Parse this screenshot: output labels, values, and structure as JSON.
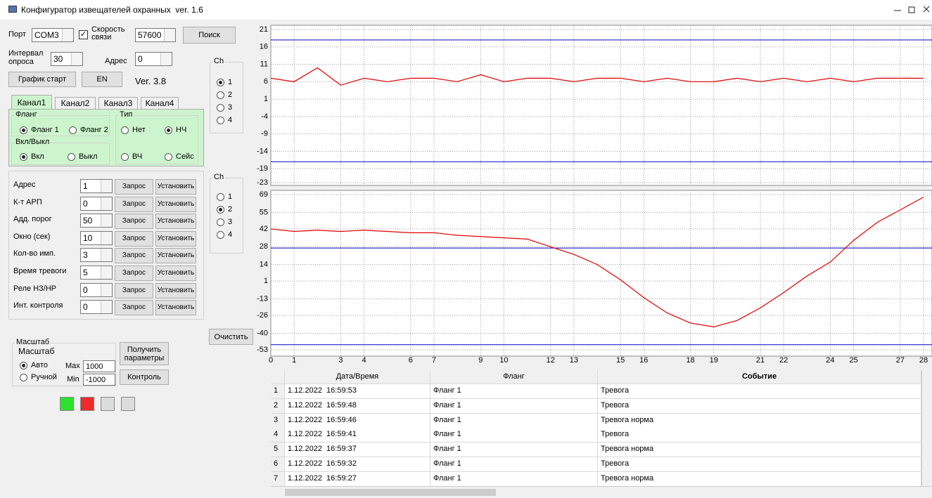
{
  "window": {
    "title": "Конфигуратор извещателей охранных  ver. 1.6"
  },
  "connection": {
    "port_label": "Порт",
    "port": "COM3",
    "speed_checked": true,
    "speed_label": "Скорость связи",
    "speed": 57600,
    "search_button": "Поиск",
    "interval_label": "Интервал опроса",
    "interval": 30,
    "address_label": "Адрес",
    "address": 0,
    "start_button": "График старт",
    "lang_button": "EN",
    "version": "Ver. 3.8"
  },
  "ch_group_1": {
    "title": "Ch",
    "options": [
      1,
      2,
      3,
      4
    ],
    "selected": 0
  },
  "ch_group_2": {
    "title": "Ch",
    "options": [
      1,
      2,
      3,
      4
    ],
    "selected": 1
  },
  "tabs": {
    "items": [
      "Канал1",
      "Канал2",
      "Канал3",
      "Канал4"
    ],
    "active": 0
  },
  "flank": {
    "title": "Фланг",
    "options": [
      "Фланг 1",
      "Фланг 2"
    ],
    "selected": 0
  },
  "onoff": {
    "title": "Вкл/Выкл",
    "options": [
      "Вкл",
      "Выкл"
    ],
    "selected": 0
  },
  "kind": {
    "title": "Тип",
    "options": [
      "Нет",
      "НЧ",
      "ВЧ",
      "Сейс"
    ],
    "selected": 1
  },
  "params": {
    "query_button": "Запрос",
    "set_button": "Установить",
    "rows": [
      {
        "label": "Адрес",
        "value": 1
      },
      {
        "label": "К-т АРП",
        "value": 0
      },
      {
        "label": "Адд. порог",
        "value": 50
      },
      {
        "label": "Окно (сек)",
        "value": 10
      },
      {
        "label": "Кол-во имп.",
        "value": 3
      },
      {
        "label": "Время тревоги",
        "value": 5
      },
      {
        "label": "Реле НЗ/НР",
        "value": 0
      },
      {
        "label": "Инт. контроля",
        "value": 0
      }
    ]
  },
  "clear_button": "Очистить",
  "scale": {
    "title": "Масштаб",
    "options": [
      "Авто",
      "Ручной"
    ],
    "selected": 0,
    "max_label": "Max",
    "max": 1000,
    "min_label": "Min",
    "min": -1000,
    "get_button": "Получить параметры",
    "control_button": "Контроль"
  },
  "indicators": [
    "#2ee02e",
    "#ee2a2a",
    "#dcdcdc",
    "#dcdcdc"
  ],
  "chart_data": [
    {
      "type": "line",
      "x": [
        0,
        1,
        2,
        3,
        4,
        5,
        6,
        7,
        8,
        9,
        10,
        11,
        12,
        13,
        14,
        15,
        16,
        17,
        18,
        19,
        20,
        21,
        22,
        23,
        24,
        25,
        26,
        27,
        28
      ],
      "series": [
        {
          "color": "#e00000",
          "values": [
            7,
            6,
            10,
            5,
            7,
            6,
            7,
            7,
            6,
            8,
            6,
            7,
            7,
            6,
            7,
            7,
            6,
            7,
            6,
            6,
            7,
            6,
            7,
            6,
            7,
            6,
            7,
            7,
            7
          ]
        }
      ],
      "hlines": {
        "color": "#0000c8",
        "values": [
          18,
          -17
        ]
      },
      "xlim": [
        0,
        28
      ],
      "xticks": [
        0,
        1,
        3,
        4,
        6,
        7,
        9,
        10,
        12,
        13,
        15,
        16,
        18,
        19,
        21,
        22,
        24,
        25,
        27,
        28
      ],
      "ylim": [
        -23,
        21
      ],
      "yticks": [
        21,
        16,
        11,
        6,
        1,
        -4,
        -9,
        -14,
        -19,
        -23
      ],
      "grid": true
    },
    {
      "type": "line",
      "x": [
        0,
        1,
        2,
        3,
        4,
        5,
        6,
        7,
        8,
        9,
        10,
        11,
        12,
        13,
        14,
        15,
        16,
        17,
        18,
        19,
        20,
        21,
        22,
        23,
        24,
        25,
        26,
        27,
        28
      ],
      "series": [
        {
          "color": "#e00000",
          "values": [
            42,
            40,
            41,
            40,
            41,
            40,
            39,
            39,
            37,
            36,
            35,
            34,
            28,
            22,
            14,
            2,
            -12,
            -24,
            -32,
            -35,
            -30,
            -20,
            -8,
            5,
            16,
            33,
            47,
            57,
            67
          ]
        }
      ],
      "hlines": {
        "color": "#0000c8",
        "values": [
          27,
          -49
        ]
      },
      "xlim": [
        0,
        28
      ],
      "xticks": [
        0,
        1,
        3,
        4,
        6,
        7,
        9,
        10,
        12,
        13,
        15,
        16,
        18,
        19,
        21,
        22,
        24,
        25,
        27,
        28
      ],
      "ylim": [
        -53,
        69
      ],
      "yticks": [
        69,
        55,
        42,
        28,
        14,
        1,
        -13,
        -26,
        -40,
        -53
      ],
      "grid": true
    }
  ],
  "table": {
    "columns": [
      "Дата/Время",
      "Фланг",
      "Событие"
    ],
    "rows": [
      {
        "n": 1,
        "cells": [
          "1.12.2022  16:59:53",
          "Фланг 1",
          "Тревога"
        ]
      },
      {
        "n": 2,
        "cells": [
          "1.12.2022  16:59:48",
          "Фланг 1",
          "Тревога"
        ]
      },
      {
        "n": 3,
        "cells": [
          "1.12.2022  16:59:46",
          "Фланг 1",
          "Тревога норма"
        ]
      },
      {
        "n": 4,
        "cells": [
          "1.12.2022  16:59:41",
          "Фланг 1",
          "Тревога"
        ]
      },
      {
        "n": 5,
        "cells": [
          "1.12.2022  16:59:37",
          "Фланг 1",
          "Тревога норма"
        ]
      },
      {
        "n": 6,
        "cells": [
          "1.12.2022  16:59:32",
          "Фланг 1",
          "Тревога"
        ]
      },
      {
        "n": 7,
        "cells": [
          "1.12.2022  16:59:27",
          "Фланг 1",
          "Тревога норма"
        ]
      }
    ]
  }
}
